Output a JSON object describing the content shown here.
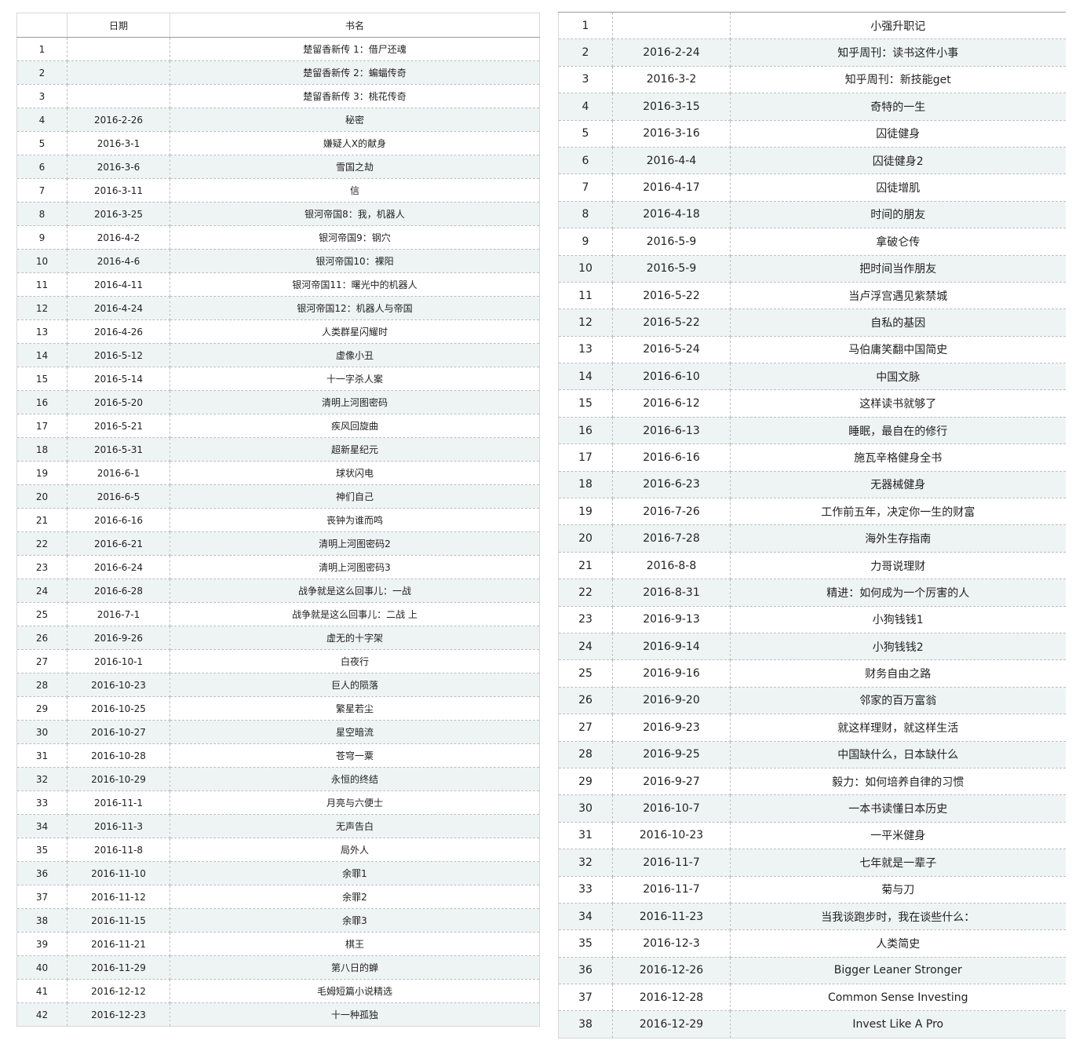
{
  "left_table": {
    "headers": [
      "",
      "日期",
      "书名"
    ],
    "rows": [
      [
        "1",
        "",
        "楚留香新传 1：借尸还魂"
      ],
      [
        "2",
        "",
        "楚留香新传 2：蝙蝠传奇"
      ],
      [
        "3",
        "",
        "楚留香新传 3：桃花传奇"
      ],
      [
        "4",
        "2016-2-26",
        "秘密"
      ],
      [
        "5",
        "2016-3-1",
        "嫌疑人X的献身"
      ],
      [
        "6",
        "2016-3-6",
        "雪国之劫"
      ],
      [
        "7",
        "2016-3-11",
        "信"
      ],
      [
        "8",
        "2016-3-25",
        "银河帝国8：我，机器人"
      ],
      [
        "9",
        "2016-4-2",
        "银河帝国9：钢穴"
      ],
      [
        "10",
        "2016-4-6",
        "银河帝国10：裸阳"
      ],
      [
        "11",
        "2016-4-11",
        "银河帝国11：曙光中的机器人"
      ],
      [
        "12",
        "2016-4-24",
        "银河帝国12：机器人与帝国"
      ],
      [
        "13",
        "2016-4-26",
        "人类群星闪耀时"
      ],
      [
        "14",
        "2016-5-12",
        "虚像小丑"
      ],
      [
        "15",
        "2016-5-14",
        "十一字杀人案"
      ],
      [
        "16",
        "2016-5-20",
        "清明上河图密码"
      ],
      [
        "17",
        "2016-5-21",
        "疾风回旋曲"
      ],
      [
        "18",
        "2016-5-31",
        "超新星纪元"
      ],
      [
        "19",
        "2016-6-1",
        "球状闪电"
      ],
      [
        "20",
        "2016-6-5",
        "神们自己"
      ],
      [
        "21",
        "2016-6-16",
        "丧钟为谁而鸣"
      ],
      [
        "22",
        "2016-6-21",
        "清明上河图密码2"
      ],
      [
        "23",
        "2016-6-24",
        "清明上河图密码3"
      ],
      [
        "24",
        "2016-6-28",
        "战争就是这么回事儿：一战"
      ],
      [
        "25",
        "2016-7-1",
        "战争就是这么回事儿：二战 上"
      ],
      [
        "26",
        "2016-9-26",
        "虚无的十字架"
      ],
      [
        "27",
        "2016-10-1",
        "白夜行"
      ],
      [
        "28",
        "2016-10-23",
        "巨人的陨落"
      ],
      [
        "29",
        "2016-10-25",
        "繁星若尘"
      ],
      [
        "30",
        "2016-10-27",
        "星空暗流"
      ],
      [
        "31",
        "2016-10-28",
        "苍穹一粟"
      ],
      [
        "32",
        "2016-10-29",
        "永恒的终结"
      ],
      [
        "33",
        "2016-11-1",
        "月亮与六便士"
      ],
      [
        "34",
        "2016-11-3",
        "无声告白"
      ],
      [
        "35",
        "2016-11-8",
        "局外人"
      ],
      [
        "36",
        "2016-11-10",
        "余罪1"
      ],
      [
        "37",
        "2016-11-12",
        "余罪2"
      ],
      [
        "38",
        "2016-11-15",
        "余罪3"
      ],
      [
        "39",
        "2016-11-21",
        "棋王"
      ],
      [
        "40",
        "2016-11-29",
        "第八日的蝉"
      ],
      [
        "41",
        "2016-12-12",
        "毛姆短篇小说精选"
      ],
      [
        "42",
        "2016-12-23",
        "十一种孤独"
      ]
    ]
  },
  "right_table": {
    "rows": [
      [
        "1",
        "",
        "小强升职记"
      ],
      [
        "2",
        "2016-2-24",
        "知乎周刊：读书这件小事"
      ],
      [
        "3",
        "2016-3-2",
        "知乎周刊：新技能get"
      ],
      [
        "4",
        "2016-3-15",
        "奇特的一生"
      ],
      [
        "5",
        "2016-3-16",
        "囚徒健身"
      ],
      [
        "6",
        "2016-4-4",
        "囚徒健身2"
      ],
      [
        "7",
        "2016-4-17",
        "囚徒增肌"
      ],
      [
        "8",
        "2016-4-18",
        "时间的朋友"
      ],
      [
        "9",
        "2016-5-9",
        "拿破仑传"
      ],
      [
        "10",
        "2016-5-9",
        "把时间当作朋友"
      ],
      [
        "11",
        "2016-5-22",
        "当卢浮宫遇见紫禁城"
      ],
      [
        "12",
        "2016-5-22",
        "自私的基因"
      ],
      [
        "13",
        "2016-5-24",
        "马伯庸笑翻中国简史"
      ],
      [
        "14",
        "2016-6-10",
        "中国文脉"
      ],
      [
        "15",
        "2016-6-12",
        "这样读书就够了"
      ],
      [
        "16",
        "2016-6-13",
        "睡眠，最自在的修行"
      ],
      [
        "17",
        "2016-6-16",
        "施瓦辛格健身全书"
      ],
      [
        "18",
        "2016-6-23",
        "无器械健身"
      ],
      [
        "19",
        "2016-7-26",
        "工作前五年，决定你一生的财富"
      ],
      [
        "20",
        "2016-7-28",
        "海外生存指南"
      ],
      [
        "21",
        "2016-8-8",
        "力哥说理财"
      ],
      [
        "22",
        "2016-8-31",
        "精进：如何成为一个厉害的人"
      ],
      [
        "23",
        "2016-9-13",
        "小狗钱钱1"
      ],
      [
        "24",
        "2016-9-14",
        "小狗钱钱2"
      ],
      [
        "25",
        "2016-9-16",
        "财务自由之路"
      ],
      [
        "26",
        "2016-9-20",
        "邻家的百万富翁"
      ],
      [
        "27",
        "2016-9-23",
        "就这样理财，就这样生活"
      ],
      [
        "28",
        "2016-9-25",
        "中国缺什么，日本缺什么"
      ],
      [
        "29",
        "2016-9-27",
        "毅力：如何培养自律的习惯"
      ],
      [
        "30",
        "2016-10-7",
        "一本书读懂日本历史"
      ],
      [
        "31",
        "2016-10-23",
        "一平米健身"
      ],
      [
        "32",
        "2016-11-7",
        "七年就是一辈子"
      ],
      [
        "33",
        "2016-11-7",
        "菊与刀"
      ],
      [
        "34",
        "2016-11-23",
        "当我谈跑步时，我在谈些什么："
      ],
      [
        "35",
        "2016-12-3",
        "人类简史"
      ],
      [
        "36",
        "2016-12-26",
        "Bigger Leaner Stronger"
      ],
      [
        "37",
        "2016-12-28",
        "Common Sense Investing"
      ],
      [
        "38",
        "2016-12-29",
        "Invest Like A Pro"
      ]
    ]
  }
}
